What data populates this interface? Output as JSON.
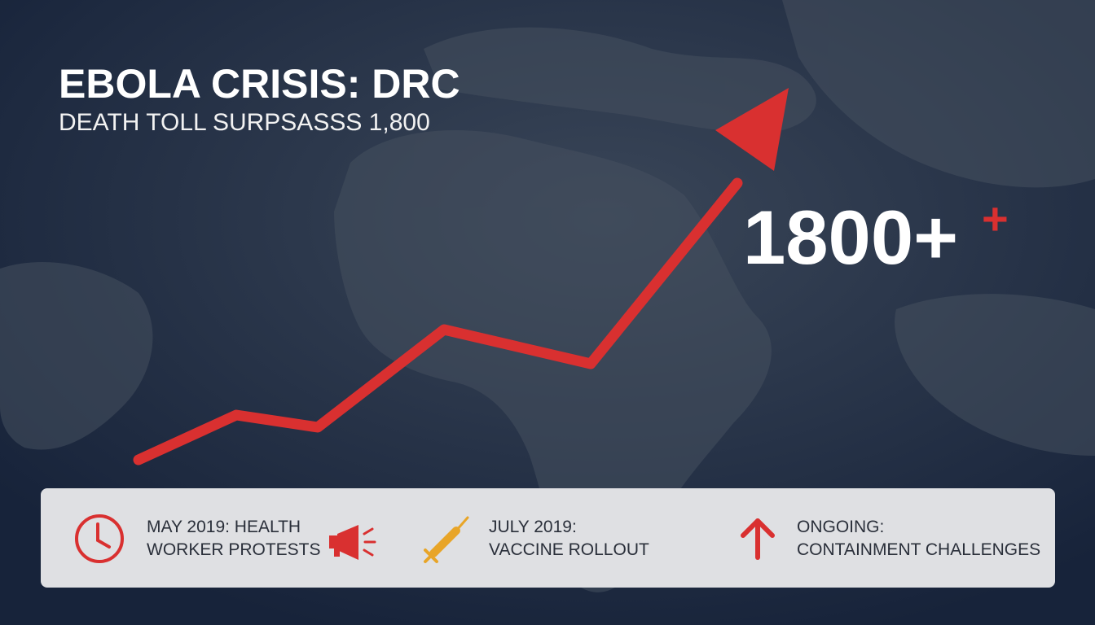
{
  "header": {
    "title": "EBOLA CRISIS: DRC",
    "subtitle": "DEATH TOLL SURPSASSS 1,800"
  },
  "highlight": {
    "number": "1800+",
    "mark": "+"
  },
  "timeline": [
    {
      "lines": [
        "MAY 2019: HEALTH",
        "WORKER PROTESTS"
      ]
    },
    {
      "lines": [
        "JULY 2019:",
        "VACCINE ROLLOUT"
      ]
    },
    {
      "lines": [
        "ONGOING:",
        "CONTAINMENT CHALLENGES"
      ]
    }
  ]
}
